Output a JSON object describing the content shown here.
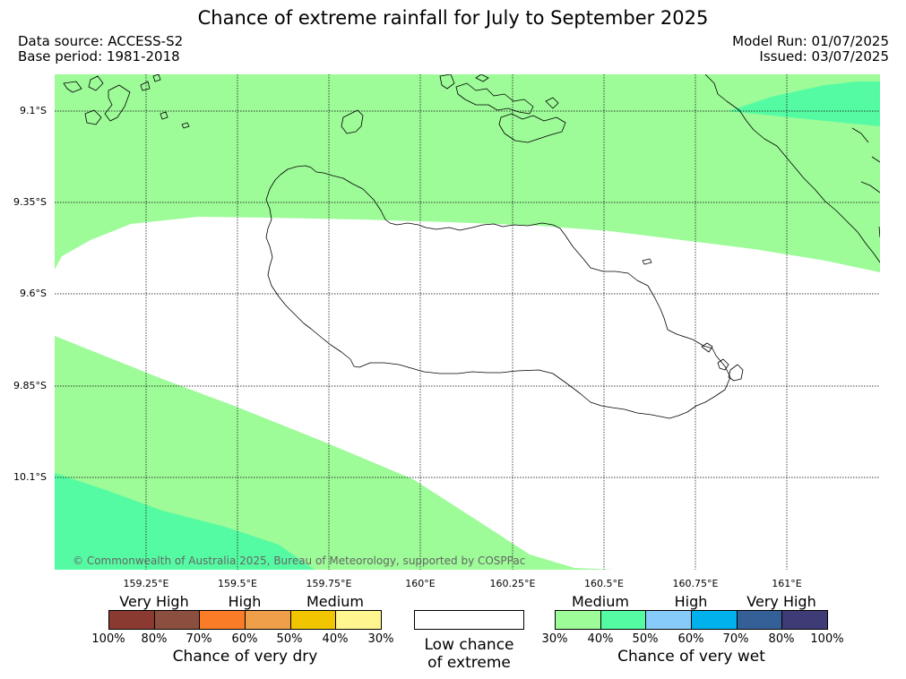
{
  "title": "Chance of extreme rainfall for July to September 2025",
  "meta": {
    "data_source": "Data source: ACCESS-S2",
    "base_period": "Base period: 1981-2018",
    "model_run": "Model Run: 01/07/2025",
    "issued": "Issued: 03/07/2025"
  },
  "map": {
    "lat_labels": [
      "9.1°S",
      "9.35°S",
      "9.6°S",
      "9.85°S",
      "10.1°S"
    ],
    "lon_labels": [
      "159.25°E",
      "159.5°E",
      "159.75°E",
      "160°E",
      "160.25°E",
      "160.5°E",
      "160.75°E",
      "161°E"
    ],
    "copyright": "© Commonwealth of Australia 2025, Bureau of Meteorology, supported by COSPPac",
    "colors": {
      "wet_30_40": "#9dfb98",
      "wet_40_50": "#55fba3",
      "ocean_bg": "#ffffff",
      "coastline": "#000000",
      "gridline": "#000000"
    }
  },
  "legend": {
    "dry": {
      "categories": [
        "Very High",
        "High",
        "Medium"
      ],
      "colors": [
        "#8b3a32",
        "#8a4f3f",
        "#fa7c26",
        "#ef9e4a",
        "#f1c500",
        "#fff68f"
      ],
      "ticks": [
        "100%",
        "80%",
        "70%",
        "60%",
        "50%",
        "40%",
        "30%"
      ],
      "caption": "Chance of very dry"
    },
    "neutral": {
      "color": "#ffffff",
      "caption_line1": "Low chance",
      "caption_line2": "of extreme"
    },
    "wet": {
      "categories": [
        "Medium",
        "High",
        "Very High"
      ],
      "colors": [
        "#9dfb98",
        "#55fba3",
        "#87cbfa",
        "#00b1ec",
        "#356097",
        "#3f3b76"
      ],
      "ticks": [
        "30%",
        "40%",
        "50%",
        "60%",
        "70%",
        "80%",
        "100%"
      ],
      "caption": "Chance of very wet"
    }
  }
}
